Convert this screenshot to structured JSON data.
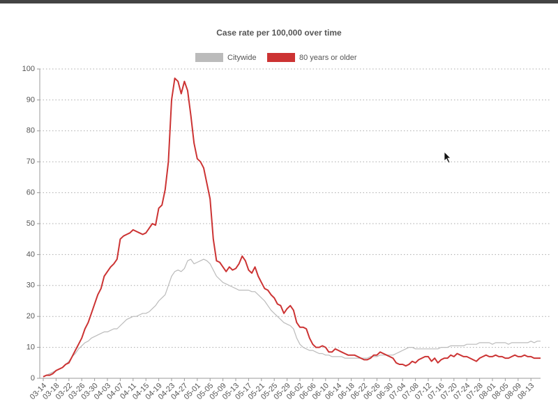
{
  "chart_data": {
    "type": "line",
    "title": "Case rate per 100,000 over time",
    "categories": [
      "03-14",
      null,
      null,
      null,
      "03-18",
      null,
      null,
      null,
      "03-22",
      null,
      null,
      null,
      "03-26",
      null,
      null,
      null,
      "03-30",
      null,
      null,
      null,
      "04-03",
      null,
      null,
      null,
      "04-07",
      null,
      null,
      null,
      "04-11",
      null,
      null,
      null,
      "04-15",
      null,
      null,
      null,
      "04-19",
      null,
      null,
      null,
      "04-23",
      null,
      null,
      null,
      "04-27",
      null,
      null,
      null,
      "05-01",
      null,
      null,
      null,
      "05-05",
      null,
      null,
      null,
      "05-09",
      null,
      null,
      null,
      "05-13",
      null,
      null,
      null,
      "05-17",
      null,
      null,
      null,
      "05-21",
      null,
      null,
      null,
      "05-25",
      null,
      null,
      null,
      "05-29",
      null,
      null,
      null,
      "06-02",
      null,
      null,
      null,
      "06-06",
      null,
      null,
      null,
      "06-10",
      null,
      null,
      null,
      "06-14",
      null,
      null,
      null,
      "06-18",
      null,
      null,
      null,
      "06-22",
      null,
      null,
      null,
      "06-26",
      null,
      null,
      null,
      "06-30",
      null,
      null,
      null,
      "07-04",
      null,
      null,
      null,
      "07-08",
      null,
      null,
      null,
      "07-12",
      null,
      null,
      null,
      "07-16",
      null,
      null,
      null,
      "07-20",
      null,
      null,
      null,
      "07-24",
      null,
      null,
      null,
      "07-28",
      null,
      null,
      null,
      "08-01",
      null,
      null,
      null,
      "08-05",
      null,
      null,
      null,
      "08-09",
      null,
      null,
      null,
      "08-13",
      null,
      null,
      null
    ],
    "series": [
      {
        "name": "Citywide",
        "color": "#bbbbbb",
        "values": [
          0.5,
          1,
          1.5,
          2,
          2.5,
          3,
          3.5,
          4.5,
          5.5,
          7,
          8,
          9.5,
          10.5,
          11.5,
          12,
          13,
          13.5,
          14,
          14.5,
          15,
          15,
          15.5,
          16,
          16,
          17,
          18,
          19,
          19.5,
          20,
          20,
          20.5,
          21,
          21,
          21.5,
          22.5,
          23.5,
          25,
          26,
          27,
          30,
          33,
          34.5,
          35,
          34.5,
          35.5,
          38,
          38.5,
          37,
          37.5,
          38,
          38.5,
          38,
          37,
          35,
          33,
          32,
          31,
          30.5,
          30,
          29.5,
          29,
          28.5,
          28.5,
          28.5,
          28.5,
          28,
          28,
          27,
          26,
          25,
          23.5,
          22,
          21,
          20,
          19,
          18,
          17.5,
          17,
          16,
          13,
          11,
          10,
          9.5,
          9,
          9,
          8.5,
          8,
          8,
          7.5,
          7.5,
          7,
          7,
          7,
          7,
          6.5,
          6.5,
          6.5,
          6.5,
          6.5,
          6.5,
          6.5,
          6.5,
          7,
          7,
          7,
          7.5,
          7.5,
          7.5,
          7.5,
          7.5,
          8,
          8.5,
          9,
          9.5,
          10,
          10,
          9.5,
          9.5,
          9.5,
          9.5,
          9.5,
          9.5,
          9.5,
          9.5,
          10,
          10,
          10,
          10.5,
          10.5,
          10.5,
          10.5,
          10.5,
          11,
          11,
          11,
          11,
          11.5,
          11.5,
          11.5,
          11.5,
          11,
          11.5,
          11.5,
          11.5,
          11.5,
          11,
          11.5,
          11.5,
          11.5,
          11.5,
          11.5,
          11.5,
          12,
          11.5,
          12,
          12
        ]
      },
      {
        "name": "80 years or older",
        "color": "#cc3333",
        "values": [
          0.5,
          1,
          1,
          1.5,
          2.5,
          3,
          3.5,
          4.5,
          5,
          7,
          9,
          11,
          13,
          16,
          18,
          21,
          24,
          27,
          29,
          33,
          34.5,
          36,
          37,
          38.5,
          45,
          46,
          46.5,
          47,
          48,
          47.5,
          47,
          46.5,
          47,
          48.5,
          50,
          49.5,
          55,
          56,
          61,
          70,
          90,
          97,
          96,
          92,
          96,
          93,
          85,
          76,
          71,
          70,
          68,
          63,
          58,
          45,
          38,
          37.5,
          36,
          34.5,
          36,
          35,
          35.5,
          37,
          39.5,
          38,
          35,
          34,
          36,
          33,
          31,
          29,
          28.5,
          27,
          26,
          24,
          23.5,
          21,
          22.5,
          23.5,
          22,
          18,
          16.5,
          16.5,
          16,
          13,
          11,
          10,
          10,
          10.5,
          10,
          8.5,
          8.5,
          9.5,
          9,
          8.5,
          8,
          7.5,
          7.5,
          7.5,
          7,
          6.5,
          6,
          6,
          6.5,
          7.5,
          7.5,
          8.5,
          8,
          7.5,
          7,
          6.5,
          5,
          4.5,
          4.5,
          4,
          4.5,
          5.5,
          5,
          6,
          6.5,
          7,
          7,
          5.5,
          6.5,
          5,
          6,
          6.5,
          6.5,
          7.5,
          7,
          8,
          7.5,
          7,
          7,
          6.5,
          6,
          5.5,
          6.5,
          7,
          7.5,
          7,
          7,
          7.5,
          7,
          7,
          6.5,
          6.5,
          7,
          7.5,
          7,
          7,
          7.5,
          7,
          7,
          6.5,
          6.5,
          6.5
        ]
      }
    ],
    "ylim": [
      0,
      100
    ],
    "yticks": [
      0,
      10,
      20,
      30,
      40,
      50,
      60,
      70,
      80,
      90,
      100
    ],
    "grid": true
  }
}
